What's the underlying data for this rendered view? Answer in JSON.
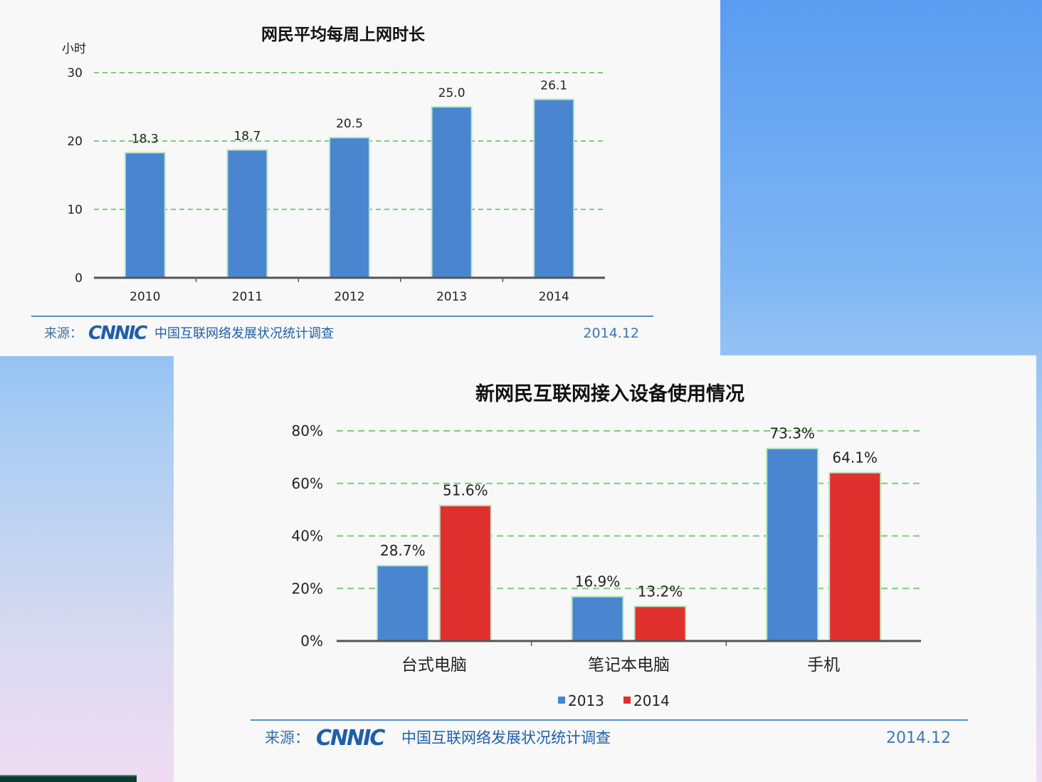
{
  "chart_data": [
    {
      "type": "bar",
      "title": "网民平均每周上网时长",
      "ylabel": "小时",
      "xlabel": "",
      "categories": [
        "2010",
        "2011",
        "2012",
        "2013",
        "2014"
      ],
      "values": [
        18.3,
        18.7,
        20.5,
        25.0,
        26.1
      ],
      "value_labels": [
        "18.3",
        "18.7",
        "20.5",
        "25.0",
        "26.1"
      ],
      "yticks": [
        "0",
        "10",
        "20",
        "30"
      ],
      "ylim": [
        0,
        30
      ],
      "grid": true,
      "colors": {
        "bar": "#4a86cf",
        "grid": "#7dcc7d"
      },
      "source_label": "来源：",
      "source_logo": "CNNIC",
      "source_text": "中国互联网络发展状况统计调查",
      "date": "2014.12"
    },
    {
      "type": "bar",
      "title": "新网民互联网接入设备使用情况",
      "xlabel": "",
      "ylabel": "",
      "categories": [
        "台式电脑",
        "笔记本电脑",
        "手机"
      ],
      "series": [
        {
          "name": "2013",
          "values": [
            28.7,
            16.9,
            73.3
          ],
          "labels": [
            "28.7%",
            "16.9%",
            "73.3%"
          ],
          "color": "#4a86cf"
        },
        {
          "name": "2014",
          "values": [
            51.6,
            13.2,
            64.1
          ],
          "labels": [
            "51.6%",
            "13.2%",
            "64.1%"
          ],
          "color": "#e0302e"
        }
      ],
      "yticks": [
        "0%",
        "20%",
        "40%",
        "60%",
        "80%"
      ],
      "ylim": [
        0,
        80
      ],
      "grid": true,
      "legend": "bottom",
      "colors": {
        "grid": "#7dcc7d"
      },
      "source_label": "来源：",
      "source_logo": "CNNIC",
      "source_text": "中国互联网络发展状况统计调查",
      "date": "2014.12"
    }
  ]
}
